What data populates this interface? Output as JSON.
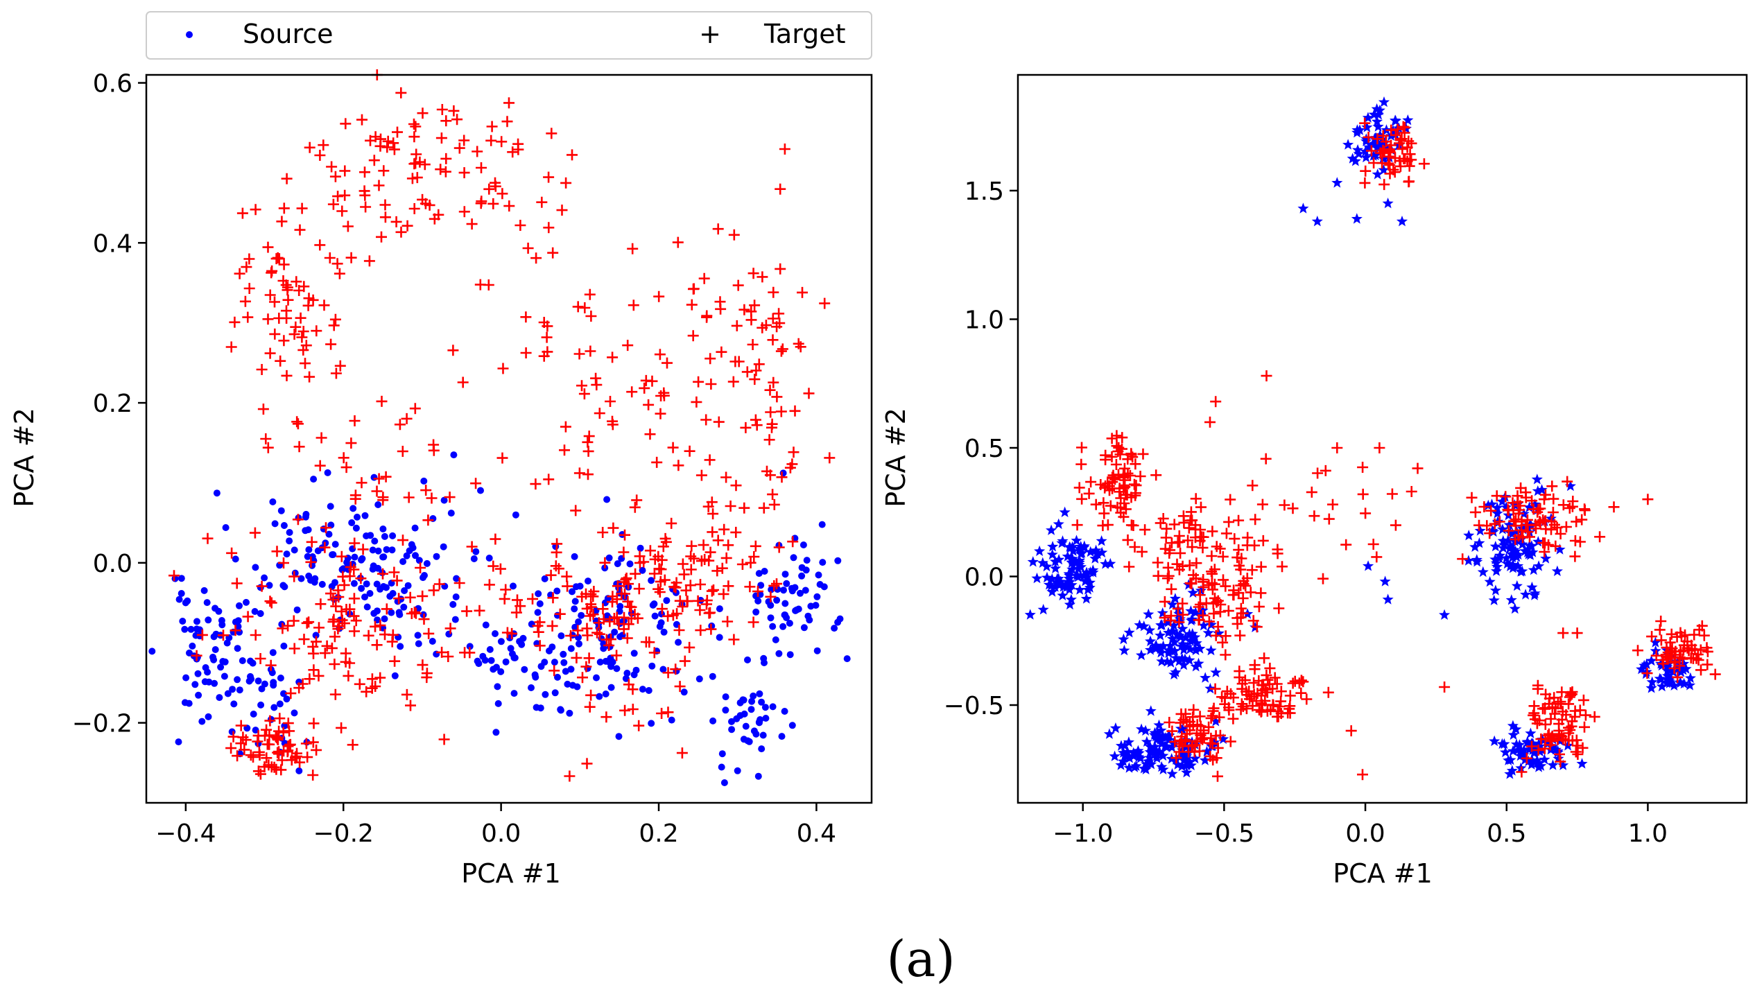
{
  "legend": {
    "source_label": "Source",
    "target_label": "Target",
    "source_color": "#0000ff",
    "target_color": "#ff0000"
  },
  "caption": "(a)",
  "chart_data": [
    {
      "type": "scatter",
      "title": "",
      "xlabel": "PCA #1",
      "ylabel": "PCA #2",
      "xlim": [
        -0.45,
        0.47
      ],
      "ylim": [
        -0.3,
        0.61
      ],
      "xticks": [
        -0.4,
        -0.2,
        0.0,
        0.2,
        0.4
      ],
      "xtick_labels": [
        "−0.4",
        "−0.2",
        "0.0",
        "0.2",
        "0.4"
      ],
      "yticks": [
        -0.2,
        0.0,
        0.2,
        0.4,
        0.6
      ],
      "ytick_labels": [
        "−0.2",
        "0.0",
        "0.2",
        "0.4",
        "0.6"
      ],
      "series": [
        {
          "name": "Source",
          "marker": "dot",
          "clusters": [
            {
              "cx": -0.36,
              "cy": -0.11,
              "sx": 0.035,
              "sy": 0.04,
              "n": 75
            },
            {
              "cx": -0.3,
              "cy": -0.19,
              "sx": 0.02,
              "sy": 0.035,
              "n": 30
            },
            {
              "cx": -0.2,
              "cy": 0.01,
              "sx": 0.06,
              "sy": 0.045,
              "n": 120
            },
            {
              "cx": -0.1,
              "cy": -0.06,
              "sx": 0.05,
              "sy": 0.04,
              "n": 35
            },
            {
              "cx": 0.05,
              "cy": -0.12,
              "sx": 0.05,
              "sy": 0.045,
              "n": 70
            },
            {
              "cx": 0.15,
              "cy": -0.07,
              "sx": 0.05,
              "sy": 0.05,
              "n": 90
            },
            {
              "cx": 0.32,
              "cy": -0.19,
              "sx": 0.025,
              "sy": 0.035,
              "n": 40
            },
            {
              "cx": 0.37,
              "cy": -0.03,
              "sx": 0.03,
              "sy": 0.045,
              "n": 60
            }
          ],
          "points": [
            [
              -0.06,
              0.135
            ],
            [
              0.3,
              -0.26
            ],
            [
              -0.4,
              -0.05
            ],
            [
              0.43,
              -0.07
            ]
          ]
        },
        {
          "name": "Target",
          "marker": "plus",
          "clusters": [
            {
              "cx": -0.27,
              "cy": 0.33,
              "sx": 0.04,
              "sy": 0.08,
              "n": 70
            },
            {
              "cx": -0.13,
              "cy": 0.49,
              "sx": 0.06,
              "sy": 0.05,
              "n": 70
            },
            {
              "cx": 0.01,
              "cy": 0.45,
              "sx": 0.04,
              "sy": 0.06,
              "n": 25
            },
            {
              "cx": 0.18,
              "cy": 0.25,
              "sx": 0.09,
              "sy": 0.1,
              "n": 80
            },
            {
              "cx": 0.32,
              "cy": 0.25,
              "sx": 0.04,
              "sy": 0.09,
              "n": 55
            },
            {
              "cx": -0.29,
              "cy": -0.23,
              "sx": 0.03,
              "sy": 0.015,
              "n": 55
            },
            {
              "cx": -0.2,
              "cy": -0.07,
              "sx": 0.08,
              "sy": 0.07,
              "n": 130
            },
            {
              "cx": 0.12,
              "cy": -0.07,
              "sx": 0.07,
              "sy": 0.06,
              "n": 110
            },
            {
              "cx": 0.25,
              "cy": -0.01,
              "sx": 0.06,
              "sy": 0.05,
              "n": 80
            },
            {
              "cx": -0.15,
              "cy": 0.1,
              "sx": 0.06,
              "sy": 0.06,
              "n": 30
            }
          ],
          "points": [
            [
              0.01,
              0.575
            ],
            [
              -0.06,
              0.565
            ],
            [
              -0.3,
              -0.255
            ],
            [
              0.38,
              0.27
            ],
            [
              0.09,
              0.51
            ]
          ]
        }
      ]
    },
    {
      "type": "scatter",
      "title": "",
      "xlabel": "PCA #1",
      "ylabel": "PCA #2",
      "xlim": [
        -1.23,
        1.35
      ],
      "ylim": [
        -0.88,
        1.95
      ],
      "xticks": [
        -1.0,
        -0.5,
        0.0,
        0.5,
        1.0
      ],
      "xtick_labels": [
        "−1.0",
        "−0.5",
        "0.0",
        "0.5",
        "1.0"
      ],
      "yticks": [
        -0.5,
        0.0,
        0.5,
        1.0,
        1.5
      ],
      "ytick_labels": [
        "−0.5",
        "0.0",
        "0.5",
        "1.0",
        "1.5"
      ],
      "series": [
        {
          "name": "Source",
          "marker": "star",
          "clusters": [
            {
              "cx": 0.04,
              "cy": 1.7,
              "sx": 0.05,
              "sy": 0.06,
              "n": 55
            },
            {
              "cx": -1.05,
              "cy": 0.03,
              "sx": 0.06,
              "sy": 0.08,
              "n": 90
            },
            {
              "cx": -0.65,
              "cy": -0.25,
              "sx": 0.08,
              "sy": 0.08,
              "n": 90
            },
            {
              "cx": -0.72,
              "cy": -0.68,
              "sx": 0.09,
              "sy": 0.05,
              "n": 100
            },
            {
              "cx": 0.53,
              "cy": 0.12,
              "sx": 0.07,
              "sy": 0.1,
              "n": 100
            },
            {
              "cx": 0.6,
              "cy": -0.68,
              "sx": 0.06,
              "sy": 0.04,
              "n": 60
            },
            {
              "cx": 1.08,
              "cy": -0.38,
              "sx": 0.05,
              "sy": 0.04,
              "n": 40
            }
          ],
          "points": [
            [
              -0.22,
              1.43
            ],
            [
              -0.1,
              1.53
            ],
            [
              -0.17,
              1.38
            ],
            [
              0.08,
              1.45
            ],
            [
              0.13,
              1.38
            ],
            [
              -0.03,
              1.39
            ],
            [
              0.07,
              -0.02
            ],
            [
              0.08,
              -0.09
            ],
            [
              0.28,
              -0.15
            ],
            [
              0.01,
              0.04
            ]
          ]
        },
        {
          "name": "Target",
          "marker": "plus",
          "clusters": [
            {
              "cx": 0.11,
              "cy": 1.66,
              "sx": 0.05,
              "sy": 0.07,
              "n": 50
            },
            {
              "cx": -0.88,
              "cy": 0.38,
              "sx": 0.05,
              "sy": 0.08,
              "n": 70
            },
            {
              "cx": -0.65,
              "cy": 0.15,
              "sx": 0.15,
              "sy": 0.08,
              "n": 55
            },
            {
              "cx": -0.52,
              "cy": -0.05,
              "sx": 0.1,
              "sy": 0.09,
              "n": 80
            },
            {
              "cx": -0.58,
              "cy": -0.6,
              "sx": 0.06,
              "sy": 0.06,
              "n": 60
            },
            {
              "cx": -0.35,
              "cy": -0.45,
              "sx": 0.09,
              "sy": 0.06,
              "n": 75
            },
            {
              "cx": 0.6,
              "cy": 0.22,
              "sx": 0.1,
              "sy": 0.06,
              "n": 80
            },
            {
              "cx": 0.68,
              "cy": -0.58,
              "sx": 0.06,
              "sy": 0.08,
              "n": 75
            },
            {
              "cx": 1.12,
              "cy": -0.3,
              "sx": 0.05,
              "sy": 0.05,
              "n": 60
            },
            {
              "cx": -0.1,
              "cy": 0.22,
              "sx": 0.2,
              "sy": 0.12,
              "n": 30
            }
          ],
          "points": [
            [
              -0.35,
              0.78
            ],
            [
              -0.53,
              0.68
            ],
            [
              -0.55,
              0.6
            ],
            [
              0.05,
              0.5
            ],
            [
              -0.1,
              0.5
            ],
            [
              0.88,
              0.27
            ],
            [
              1.0,
              0.3
            ],
            [
              -0.01,
              -0.77
            ],
            [
              0.28,
              -0.43
            ],
            [
              -0.05,
              -0.6
            ],
            [
              0.7,
              -0.22
            ],
            [
              0.75,
              -0.22
            ]
          ]
        }
      ]
    }
  ]
}
